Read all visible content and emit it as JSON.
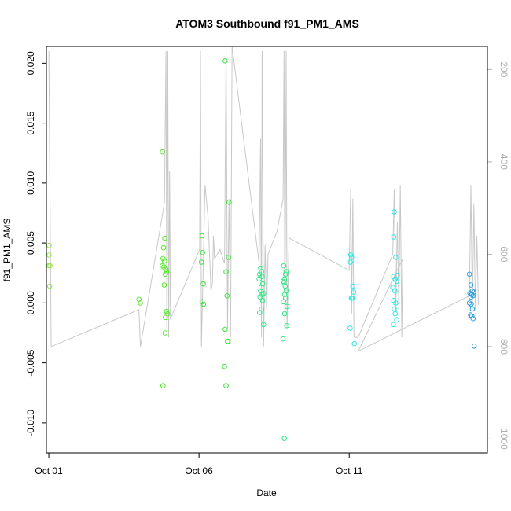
{
  "chart_data": {
    "type": "scatter",
    "title": "ATOM3 Southbound f91_PM1_AMS",
    "xlabel": "Date",
    "ylabel": "f91_PM1_AMS",
    "xlim": [
      -0.08,
      14.6
    ],
    "ylim": [
      -0.0125,
      0.0214
    ],
    "x_ticks": [
      {
        "value": 0,
        "label": "Oct 01"
      },
      {
        "value": 5,
        "label": "Oct 06"
      },
      {
        "value": 10,
        "label": "Oct 11"
      }
    ],
    "y_ticks": [
      {
        "value": -0.01,
        "label": "-0.010"
      },
      {
        "value": -0.005,
        "label": "-0.005"
      },
      {
        "value": 0.0,
        "label": "0.000"
      },
      {
        "value": 0.005,
        "label": "0.005"
      },
      {
        "value": 0.01,
        "label": "0.010"
      },
      {
        "value": 0.015,
        "label": "0.015"
      },
      {
        "value": 0.02,
        "label": "0.020"
      }
    ],
    "secondary_axis": {
      "side": "right",
      "reversed": true,
      "range": [
        150,
        1030
      ],
      "ticks": [
        200,
        400,
        600,
        800,
        1000
      ],
      "color": "#b0b0b0"
    },
    "grid": false,
    "legend": "none",
    "colors": {
      "line": "#c8c8c8",
      "axis": "#000000",
      "secondary_axis": "#b0b0b0"
    },
    "series": [
      {
        "color": "#9be055",
        "points": [
          [
            0.01,
            0.0048
          ],
          [
            0.01,
            0.004
          ],
          [
            0.0,
            0.0031
          ],
          [
            0.04,
            0.0031
          ],
          [
            0.03,
            0.0014
          ]
        ]
      },
      {
        "color": "#55ea2a",
        "points": [
          [
            3.0,
            0.0003
          ],
          [
            3.05,
            0.0
          ],
          [
            3.78,
            0.0126
          ],
          [
            3.82,
            0.0046
          ],
          [
            3.86,
            0.0054
          ],
          [
            3.8,
            0.0037
          ],
          [
            3.85,
            0.0035
          ],
          [
            3.78,
            0.0031
          ],
          [
            3.83,
            0.003
          ],
          [
            3.9,
            0.0028
          ],
          [
            3.92,
            0.0026
          ],
          [
            3.88,
            0.0024
          ],
          [
            3.84,
            0.0015
          ],
          [
            3.92,
            -0.0007
          ],
          [
            3.95,
            -0.0009
          ],
          [
            3.88,
            -0.0012
          ],
          [
            3.87,
            -0.0025
          ],
          [
            3.8,
            -0.0069
          ]
        ]
      },
      {
        "color": "#3ce43c",
        "points": [
          [
            5.1,
            0.0056
          ],
          [
            5.12,
            0.0042
          ],
          [
            5.08,
            0.0034
          ],
          [
            5.14,
            0.0016
          ],
          [
            5.1,
            0.0001
          ],
          [
            5.15,
            -0.0001
          ],
          [
            5.87,
            0.0202
          ],
          [
            6.0,
            0.0084
          ],
          [
            5.98,
            0.0038
          ],
          [
            5.9,
            0.0026
          ],
          [
            5.93,
            0.0006
          ],
          [
            5.87,
            -0.0022
          ],
          [
            5.95,
            -0.0032
          ],
          [
            5.97,
            -0.0032
          ],
          [
            5.85,
            -0.0053
          ],
          [
            5.9,
            -0.0069
          ]
        ]
      },
      {
        "color": "#2ee885",
        "points": [
          [
            7.05,
            0.0029
          ],
          [
            7.08,
            0.0026
          ],
          [
            7.02,
            0.0024
          ],
          [
            7.1,
            0.0022
          ],
          [
            7.0,
            0.002
          ],
          [
            7.12,
            0.0016
          ],
          [
            7.07,
            0.0013
          ],
          [
            7.05,
            0.001
          ],
          [
            7.15,
            0.0008
          ],
          [
            7.1,
            0.0007
          ],
          [
            7.03,
            0.0005
          ],
          [
            7.12,
            0.0002
          ],
          [
            7.08,
            -0.0005
          ],
          [
            7.02,
            -0.0008
          ],
          [
            7.15,
            -0.0018
          ],
          [
            7.82,
            0.0031
          ],
          [
            7.9,
            0.0026
          ],
          [
            7.88,
            0.0024
          ],
          [
            7.85,
            0.002
          ],
          [
            7.8,
            0.0018
          ],
          [
            7.83,
            0.0017
          ],
          [
            7.87,
            0.0014
          ],
          [
            7.9,
            0.001
          ],
          [
            7.85,
            0.0007
          ],
          [
            7.88,
            0.0004
          ],
          [
            7.81,
            0.0001
          ],
          [
            7.93,
            -0.0003
          ],
          [
            7.85,
            -0.0009
          ],
          [
            7.92,
            -0.0019
          ],
          [
            7.8,
            -0.003
          ],
          [
            7.84,
            -0.0113
          ]
        ]
      },
      {
        "color": "#2ee6e6",
        "points": [
          [
            10.05,
            0.004
          ],
          [
            10.08,
            0.0038
          ],
          [
            10.04,
            0.0034
          ],
          [
            10.12,
            0.0014
          ],
          [
            10.15,
            0.0009
          ],
          [
            10.1,
            0.0004
          ],
          [
            10.07,
            0.0004
          ],
          [
            10.03,
            -0.0021
          ],
          [
            10.17,
            -0.0034
          ],
          [
            11.5,
            0.0076
          ],
          [
            11.48,
            0.0055
          ],
          [
            11.55,
            0.0038
          ],
          [
            11.6,
            0.0023
          ],
          [
            11.48,
            0.0022
          ],
          [
            11.53,
            0.002
          ],
          [
            11.58,
            0.0018
          ],
          [
            11.45,
            0.0013
          ],
          [
            11.52,
            0.001
          ],
          [
            11.48,
            0.0002
          ],
          [
            11.55,
            0.0
          ],
          [
            11.5,
            -0.0005
          ],
          [
            11.53,
            -0.0009
          ],
          [
            11.58,
            -0.0014
          ],
          [
            11.47,
            -0.0018
          ]
        ]
      },
      {
        "color": "#2b9ee0",
        "points": [
          [
            14.0,
            0.0024
          ],
          [
            14.05,
            0.0015
          ],
          [
            14.1,
            0.001
          ],
          [
            14.15,
            0.0009
          ],
          [
            14.02,
            0.0008
          ],
          [
            14.08,
            0.0007
          ],
          [
            14.12,
            0.0006
          ],
          [
            14.05,
            0.0005
          ],
          [
            14.0,
            0.0
          ],
          [
            14.06,
            -0.0001
          ],
          [
            14.1,
            -0.0005
          ],
          [
            14.04,
            -0.001
          ],
          [
            14.08,
            -0.0011
          ],
          [
            14.12,
            -0.0013
          ],
          [
            14.16,
            -0.0036
          ]
        ]
      }
    ],
    "line_series": {
      "y_axis": "secondary",
      "values": [
        [
          0.0,
          160
        ],
        [
          0.08,
          800
        ],
        [
          3.0,
          720
        ],
        [
          3.05,
          800
        ],
        [
          3.85,
          488
        ],
        [
          3.9,
          160
        ],
        [
          3.93,
          760
        ],
        [
          3.96,
          160
        ],
        [
          3.99,
          780
        ],
        [
          4.02,
          420
        ],
        [
          4.05,
          740
        ],
        [
          5.02,
          590
        ],
        [
          5.05,
          160
        ],
        [
          5.08,
          800
        ],
        [
          5.2,
          450
        ],
        [
          5.3,
          520
        ],
        [
          5.4,
          680
        ],
        [
          5.45,
          660
        ],
        [
          5.48,
          560
        ],
        [
          5.52,
          610
        ],
        [
          5.7,
          590
        ],
        [
          5.85,
          620
        ],
        [
          5.9,
          160
        ],
        [
          5.95,
          760
        ],
        [
          6.0,
          480
        ],
        [
          6.05,
          780
        ],
        [
          6.1,
          150
        ],
        [
          7.0,
          620
        ],
        [
          7.05,
          350
        ],
        [
          7.08,
          780
        ],
        [
          7.1,
          160
        ],
        [
          7.15,
          800
        ],
        [
          7.2,
          580
        ],
        [
          7.25,
          720
        ],
        [
          7.3,
          600
        ],
        [
          7.6,
          550
        ],
        [
          7.8,
          480
        ],
        [
          7.83,
          160
        ],
        [
          7.86,
          780
        ],
        [
          7.9,
          160
        ],
        [
          7.93,
          760
        ],
        [
          8.0,
          565
        ],
        [
          10.0,
          635
        ],
        [
          10.05,
          460
        ],
        [
          10.08,
          730
        ],
        [
          10.12,
          480
        ],
        [
          10.16,
          780
        ],
        [
          10.3,
          780
        ],
        [
          11.45,
          600
        ],
        [
          11.5,
          460
        ],
        [
          11.55,
          720
        ],
        [
          11.6,
          530
        ],
        [
          11.65,
          720
        ],
        [
          11.7,
          450
        ],
        [
          11.75,
          780
        ],
        [
          11.78,
          610
        ],
        [
          10.3,
          810
        ],
        [
          14.0,
          690
        ],
        [
          14.05,
          450
        ],
        [
          14.1,
          720
        ],
        [
          14.15,
          490
        ],
        [
          14.2,
          720
        ],
        [
          14.25,
          560
        ],
        [
          14.3,
          710
        ]
      ]
    }
  }
}
